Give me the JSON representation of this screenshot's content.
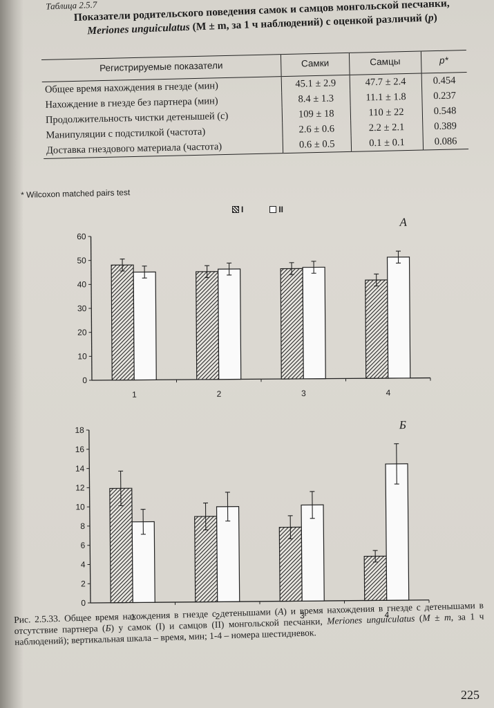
{
  "table": {
    "label": "Таблица 2.5.7",
    "title_line1": "Показатели родительского поведения самок и самцов монгольской песчанки,",
    "title_species": "Meriones unguiculatus",
    "title_rest": " (M ± m, за 1 ч наблюдений) с оценкой различий (",
    "title_p": "p",
    "title_end": ")",
    "headers": [
      "Регистрируемые показатели",
      "Самки",
      "Самцы",
      "p*"
    ],
    "rows": [
      {
        "name": "Общее время нахождения в гнезде (мин)",
        "f": "45.1 ± 2.9",
        "m": "47.7 ± 2.4",
        "p": "0.454"
      },
      {
        "name": "Нахождение в гнезде без партнера (мин)",
        "f": "8.4 ± 1.3",
        "m": "11.1 ± 1.8",
        "p": "0.237"
      },
      {
        "name": "Продолжительность чистки детенышей (с)",
        "f": "109 ± 18",
        "m": "110 ± 22",
        "p": "0.548"
      },
      {
        "name": "Манипуляции с подстилкой (частота)",
        "f": "2.6 ± 0.6",
        "m": "2.2 ± 2.1",
        "p": "0.389"
      },
      {
        "name": "Доставка гнездового материала (частота)",
        "f": "0.6 ± 0.5",
        "m": "0.1 ± 0.1",
        "p": "0.086"
      }
    ],
    "footnote": "* Wilcoxon matched pairs test"
  },
  "legend": {
    "series_1": "I",
    "series_2": "II"
  },
  "chart_data": [
    {
      "type": "bar",
      "panel_label": "А",
      "categories": [
        "1",
        "2",
        "3",
        "4"
      ],
      "series": [
        {
          "name": "I",
          "values": [
            48,
            45,
            46,
            41
          ],
          "errors": [
            2.5,
            2.5,
            2.5,
            2.5
          ],
          "pattern": "hatched"
        },
        {
          "name": "II",
          "values": [
            45,
            46,
            46.5,
            50.5
          ],
          "errors": [
            2.5,
            2.5,
            2.5,
            2.5
          ],
          "pattern": "open"
        }
      ],
      "ylim": [
        0,
        60
      ],
      "yticks": [
        0,
        10,
        20,
        30,
        40,
        50,
        60
      ]
    },
    {
      "type": "bar",
      "panel_label": "Б",
      "categories": [
        "1",
        "2",
        "3",
        "4"
      ],
      "series": [
        {
          "name": "I",
          "values": [
            11.9,
            8.9,
            7.7,
            4.6
          ],
          "errors": [
            1.8,
            1.4,
            1.2,
            0.6
          ],
          "pattern": "hatched"
        },
        {
          "name": "II",
          "values": [
            8.4,
            9.9,
            10.0,
            14.2
          ],
          "errors": [
            1.3,
            1.5,
            1.4,
            2.1
          ],
          "pattern": "open"
        }
      ],
      "ylim": [
        0,
        18
      ],
      "yticks": [
        0,
        2,
        4,
        6,
        8,
        10,
        12,
        14,
        16,
        18
      ]
    }
  ],
  "caption": {
    "fig": "Рис. 2.5.33.",
    "text1": " Общее время нахождения в гнезде с детенышами (",
    "a": "А",
    "text2": ") и время нахождения в гнезде с детенышами в отсутствие партнера (",
    "b": "Б",
    "text3": ") у самок (I) и самцов (II) монгольской песчанки, ",
    "species": "Meriones unguiculatus",
    "text4": " (",
    "mm": "M ± m",
    "text5": ", за 1 ч наблюдений); вертикальная шкала – время, мин; 1-4 – номера шестидневок."
  },
  "page_number": "225",
  "colors": {
    "paper": "#d8d5ce",
    "ink": "#1d1d1d",
    "hatch": "#2a2a2a",
    "open_bar": "#fafafa"
  }
}
